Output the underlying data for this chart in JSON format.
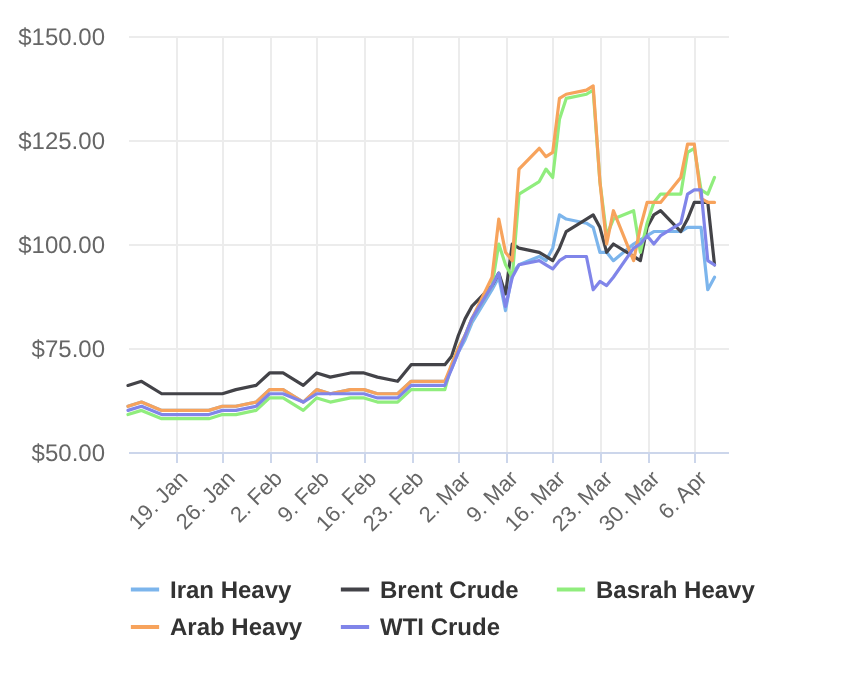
{
  "chart_data": {
    "type": "line",
    "x": [
      "--01-12",
      "--01-14",
      "--01-17",
      "--01-20",
      "--01-24",
      "--01-26",
      "--01-28",
      "--01-31",
      "--02-02",
      "--02-04",
      "--02-07",
      "--02-09",
      "--02-11",
      "--02-14",
      "--02-16",
      "--02-18",
      "--02-21",
      "--02-23",
      "--02-25",
      "--02-28",
      "--03-01",
      "--03-02",
      "--03-03",
      "--03-04",
      "--03-07",
      "--03-08",
      "--03-09",
      "--03-10",
      "--03-11",
      "--03-14",
      "--03-15",
      "--03-16",
      "--03-17",
      "--03-18",
      "--03-21",
      "--03-22",
      "--03-23",
      "--03-24",
      "--03-25",
      "--03-28",
      "--03-29",
      "--03-30",
      "--03-31",
      "--04-01",
      "--04-04",
      "--04-05",
      "--04-06",
      "--04-07",
      "--04-08",
      "--04-09"
    ],
    "series": [
      {
        "name": "Iran Heavy",
        "color": "#7cb5ec",
        "values": [
          61,
          62,
          60,
          60,
          60,
          61,
          61,
          62,
          65,
          65,
          62,
          65,
          64,
          65,
          65,
          64,
          64,
          67,
          67,
          67,
          70,
          74,
          77,
          81,
          89,
          92,
          84,
          93,
          95,
          97,
          96,
          99,
          107,
          106,
          105,
          104,
          98,
          98,
          96,
          100,
          101,
          102,
          103,
          103,
          103,
          104,
          104,
          104,
          89,
          92
        ]
      },
      {
        "name": "Brent Crude",
        "color": "#434348",
        "values": [
          66,
          67,
          64,
          64,
          64,
          64,
          65,
          66,
          69,
          69,
          66,
          69,
          68,
          69,
          69,
          68,
          67,
          71,
          71,
          71,
          73,
          78,
          82,
          85,
          90,
          93,
          88,
          100,
          99,
          98,
          97,
          96,
          99,
          103,
          106,
          107,
          104,
          98,
          100,
          97,
          96,
          104,
          107,
          108,
          103,
          106,
          110,
          110,
          110,
          95
        ]
      },
      {
        "name": "Basrah Heavy",
        "color": "#90ed7d",
        "values": [
          59,
          60,
          58,
          58,
          58,
          59,
          59,
          60,
          63,
          63,
          60,
          63,
          62,
          63,
          63,
          62,
          62,
          65,
          65,
          65,
          71,
          75,
          78,
          82,
          90,
          100,
          95,
          92,
          112,
          115,
          118,
          116,
          130,
          135,
          136,
          137,
          115,
          102,
          106,
          108,
          98,
          105,
          110,
          112,
          112,
          122,
          123,
          113,
          112,
          116
        ]
      },
      {
        "name": "Arab Heavy",
        "color": "#f7a35c",
        "values": [
          61,
          62,
          60,
          60,
          60,
          61,
          61,
          62,
          65,
          65,
          62,
          65,
          64,
          65,
          65,
          64,
          64,
          67,
          67,
          67,
          71,
          75,
          78,
          82,
          92,
          106,
          98,
          96,
          118,
          123,
          121,
          122,
          135,
          136,
          137,
          138,
          115,
          100,
          108,
          96,
          104,
          110,
          110,
          110,
          116,
          124,
          124,
          111,
          110,
          110
        ]
      },
      {
        "name": "WTI Crude",
        "color": "#8085e9",
        "values": [
          60,
          61,
          59,
          59,
          59,
          60,
          60,
          61,
          64,
          64,
          62,
          64,
          64,
          64,
          64,
          63,
          63,
          66,
          66,
          66,
          70,
          74,
          78,
          82,
          90,
          93,
          85,
          92,
          95,
          96,
          95,
          94,
          96,
          97,
          97,
          89,
          91,
          90,
          92,
          99,
          100,
          102,
          100,
          102,
          105,
          112,
          113,
          113,
          96,
          95
        ]
      }
    ],
    "xlim": [
      "--01-12",
      "--04-11"
    ],
    "xticks": [
      {
        "value": "--01-19",
        "label": "19. Jan"
      },
      {
        "value": "--01-26",
        "label": "26. Jan"
      },
      {
        "value": "--02-02",
        "label": "2. Feb"
      },
      {
        "value": "--02-09",
        "label": "9. Feb"
      },
      {
        "value": "--02-16",
        "label": "16. Feb"
      },
      {
        "value": "--02-23",
        "label": "23. Feb"
      },
      {
        "value": "--03-02",
        "label": "2. Mar"
      },
      {
        "value": "--03-09",
        "label": "9. Mar"
      },
      {
        "value": "--03-16",
        "label": "16. Mar"
      },
      {
        "value": "--03-23",
        "label": "23. Mar"
      },
      {
        "value": "--03-30",
        "label": "30. Mar"
      },
      {
        "value": "--04-06",
        "label": "6. Apr"
      }
    ],
    "ylim": [
      50,
      150
    ],
    "yticks": [
      {
        "value": 50,
        "label": "$50.00"
      },
      {
        "value": 75,
        "label": "$75.00"
      },
      {
        "value": 100,
        "label": "$100.00"
      },
      {
        "value": 125,
        "label": "$125.00"
      },
      {
        "value": 150,
        "label": "$150.00"
      }
    ],
    "grid": true,
    "legend": "bottom",
    "marker": "none",
    "line_style": "solid"
  }
}
